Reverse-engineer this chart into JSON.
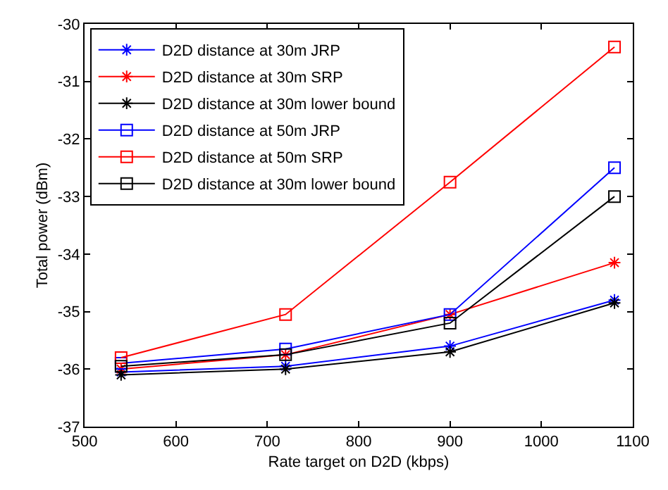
{
  "chart_data": {
    "type": "line",
    "xlabel": "Rate target on D2D (kbps)",
    "ylabel": "Total power (dBm)",
    "x": [
      540,
      720,
      900,
      1080
    ],
    "series": [
      {
        "name": "D2D distance at 30m JRP",
        "color": "#0000ff",
        "marker": "cross",
        "values": [
          -36.05,
          -35.95,
          -35.6,
          -34.8
        ]
      },
      {
        "name": "D2D distance at 30m SRP",
        "color": "#ff0000",
        "marker": "cross",
        "values": [
          -36.0,
          -35.75,
          -35.05,
          -34.15
        ]
      },
      {
        "name": "D2D distance at 30m lower bound",
        "color": "#000000",
        "marker": "cross",
        "values": [
          -36.1,
          -36.0,
          -35.7,
          -34.85
        ]
      },
      {
        "name": "D2D distance at 50m JRP",
        "color": "#0000ff",
        "marker": "square",
        "values": [
          -35.9,
          -35.65,
          -35.05,
          -32.5
        ]
      },
      {
        "name": "D2D distance at 50m SRP",
        "color": "#ff0000",
        "marker": "square",
        "values": [
          -35.8,
          -35.05,
          -32.75,
          -30.4
        ]
      },
      {
        "name": "D2D distance at 30m lower bound",
        "color": "#000000",
        "marker": "square",
        "values": [
          -35.95,
          -35.75,
          -35.2,
          -33.0
        ]
      }
    ],
    "xlim": [
      500,
      1100
    ],
    "xticks": [
      500,
      600,
      700,
      800,
      900,
      1000,
      1100
    ],
    "ylim": [
      -37,
      -30
    ],
    "yticks": [
      -37,
      -36,
      -35,
      -34,
      -33,
      -32,
      -31,
      -30
    ],
    "legend": "top left",
    "line_style": "solid"
  }
}
